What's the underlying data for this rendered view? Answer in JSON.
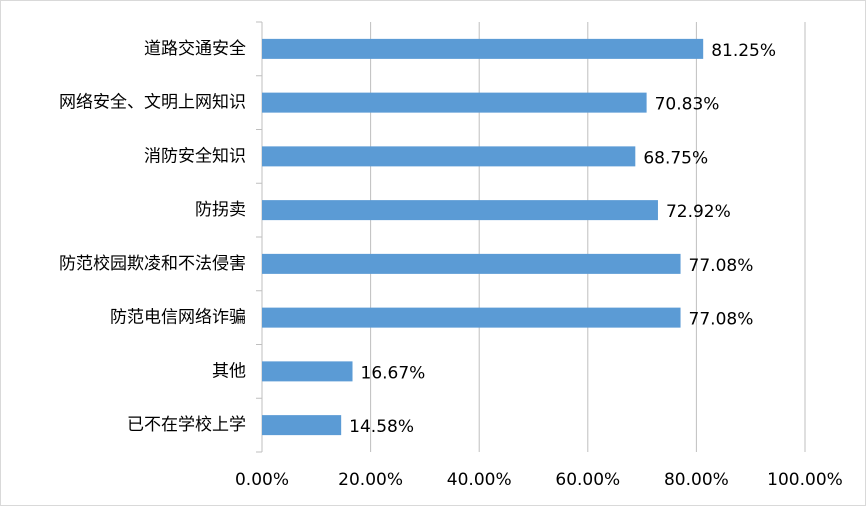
{
  "chart_data": {
    "type": "bar",
    "orientation": "horizontal",
    "categories": [
      "道路交通安全",
      "网络安全、文明上网知识",
      "消防安全知识",
      "防拐卖",
      "防范校园欺凌和不法侵害",
      "防范电信网络诈骗",
      "其他",
      "已不在学校上学"
    ],
    "values": [
      81.25,
      70.83,
      68.75,
      72.92,
      77.08,
      77.08,
      16.67,
      14.58
    ],
    "value_labels": [
      "81.25%",
      "70.83%",
      "68.75%",
      "72.92%",
      "77.08%",
      "77.08%",
      "16.67%",
      "14.58%"
    ],
    "color": "#5b9bd5",
    "xlim": [
      0,
      100
    ],
    "xticks": [
      {
        "value": 0,
        "label": "0.00%"
      },
      {
        "value": 20,
        "label": "20.00%"
      },
      {
        "value": 40,
        "label": "40.00%"
      },
      {
        "value": 60,
        "label": "60.00%"
      },
      {
        "value": 80,
        "label": "80.00%"
      },
      {
        "value": 100,
        "label": "100.00%"
      }
    ],
    "grid": true
  }
}
